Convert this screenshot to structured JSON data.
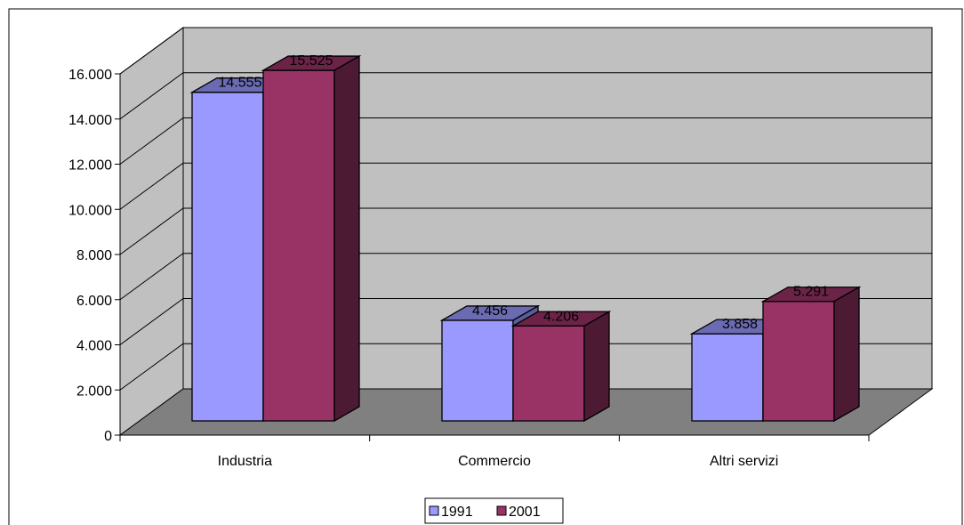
{
  "chart_data": {
    "type": "bar",
    "style": "3d-clustered-column",
    "categories": [
      "Industria",
      "Commercio",
      "Altri servizi"
    ],
    "series": [
      {
        "name": "1991",
        "values": [
          14555,
          4456,
          3858
        ],
        "labels": [
          "14.555",
          "4.456",
          "3.858"
        ],
        "color": "#9999ff",
        "top_color": "#6b6bb3",
        "side_color": "#5c5c99"
      },
      {
        "name": "2001",
        "values": [
          15525,
          4206,
          5291
        ],
        "labels": [
          "15.525",
          "4.206",
          "5.291"
        ],
        "color": "#993366",
        "top_color": "#6b2447",
        "side_color": "#4d1a33"
      }
    ],
    "ylim": [
      0,
      16000
    ],
    "yticks": [
      0,
      2000,
      4000,
      6000,
      8000,
      10000,
      12000,
      14000,
      16000
    ],
    "ytick_labels": [
      "0",
      "2.000",
      "4.000",
      "6.000",
      "8.000",
      "10.000",
      "12.000",
      "14.000",
      "16.000"
    ],
    "grid": true,
    "legend": "bottom",
    "colors": {
      "wall": "#c0c0c0",
      "floor": "#808080",
      "gridline": "#000000"
    }
  }
}
